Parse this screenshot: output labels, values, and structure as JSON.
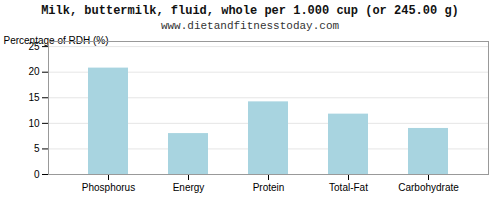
{
  "chart_data": {
    "type": "bar",
    "title": "Milk, buttermilk, fluid, whole per 1.000 cup (or 245.00 g)",
    "subtitle": "www.dietandfitnesstoday.com",
    "ylabel": "Percentage of RDH (%)",
    "categories": [
      "Phosphorus",
      "Energy",
      "Protein",
      "Total-Fat",
      "Carbohydrate"
    ],
    "values": [
      20.8,
      8.0,
      14.2,
      11.8,
      9.0
    ],
    "color": "#a8d4e0",
    "ylim": [
      0,
      26
    ],
    "yticks": [
      0,
      5,
      10,
      15,
      20,
      25
    ],
    "grid": true
  }
}
